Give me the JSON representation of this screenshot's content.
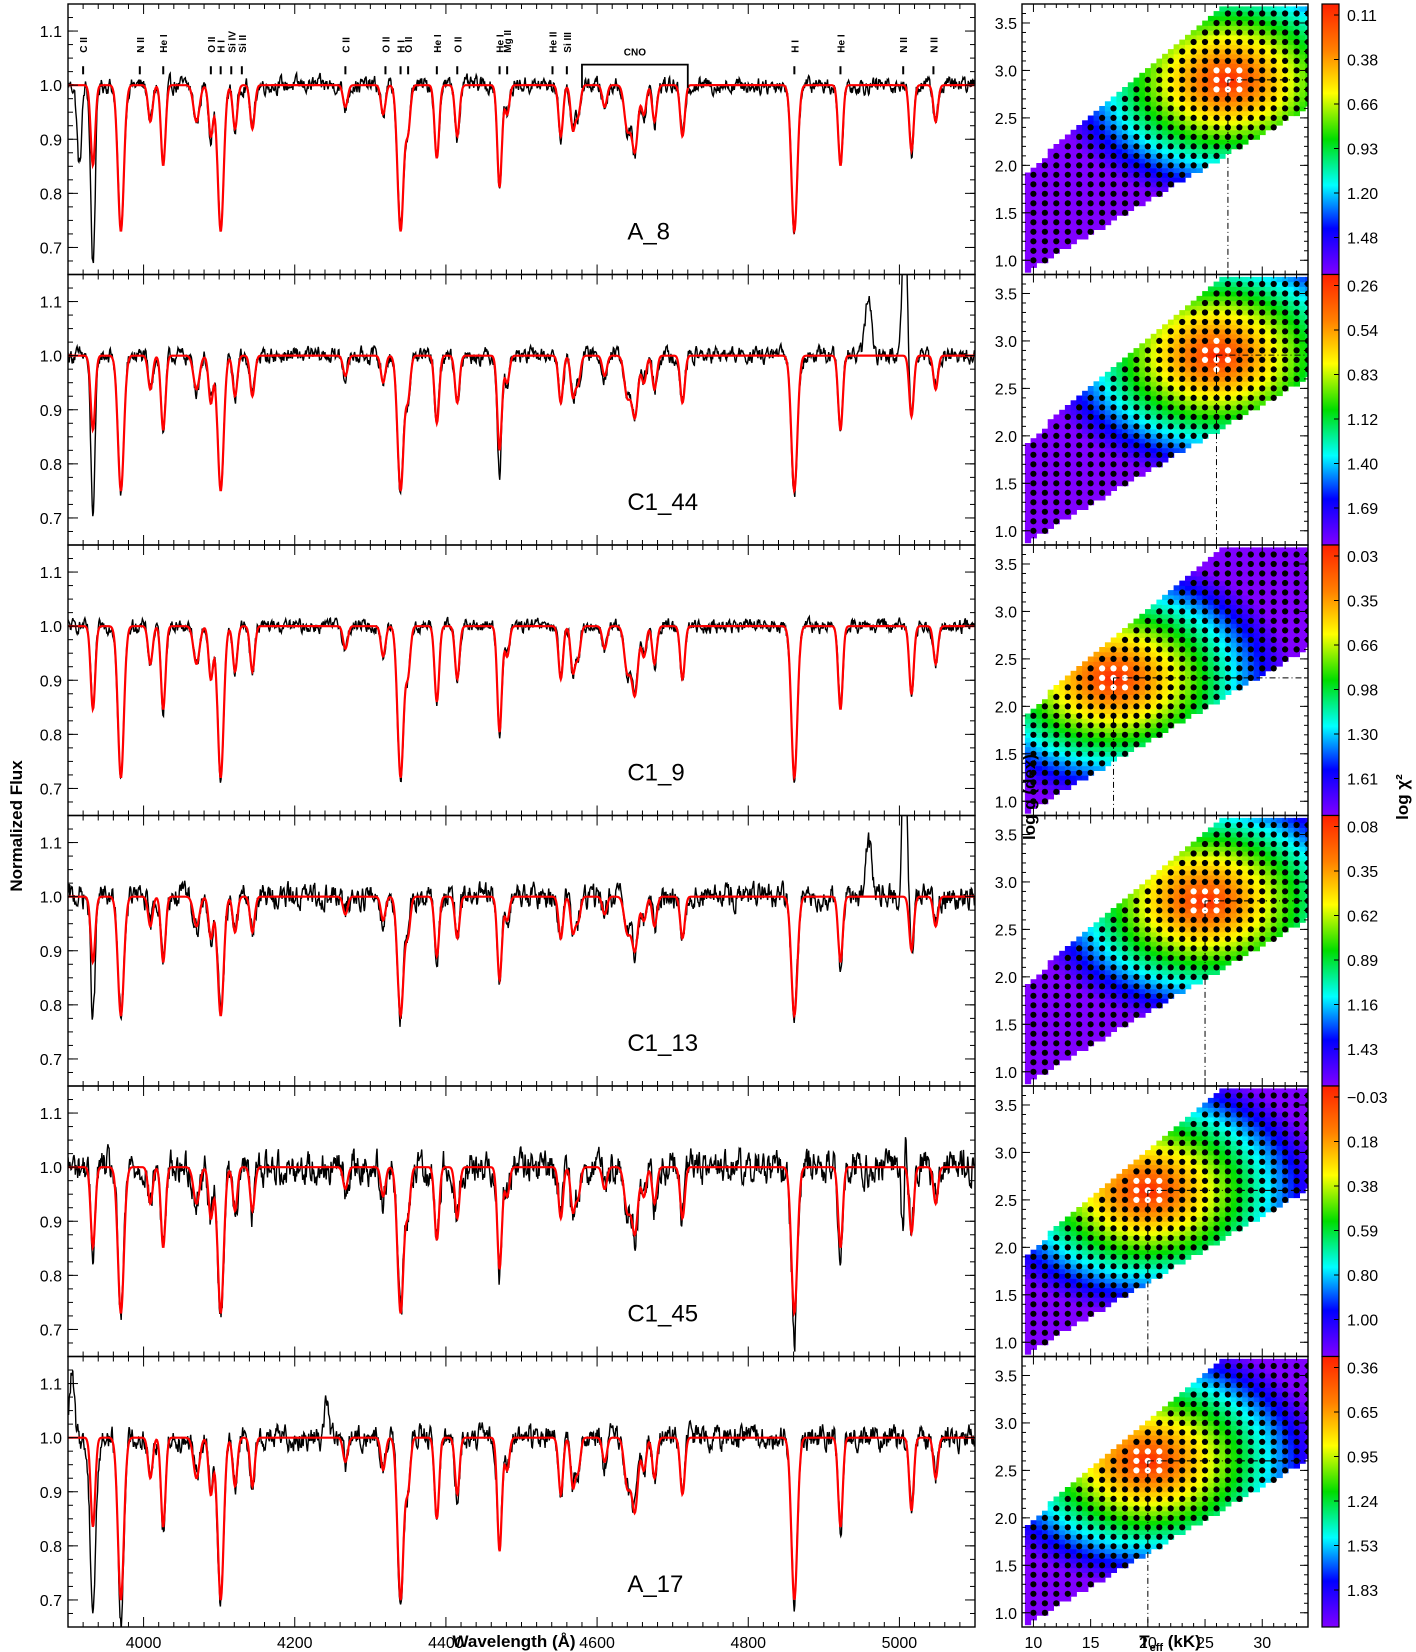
{
  "figure": {
    "left_ylabel": "Normalized Flux",
    "left_xlabel": "Wavelength (Å)",
    "right_ylabel": "log g (dex)",
    "right_xlabel_main": "T",
    "right_xlabel_sub": "eff",
    "right_xlabel_unit": " (kK)",
    "colorbar_label": "log χ²"
  },
  "chart_data": [
    {
      "type": "line",
      "title": "",
      "xlabel": "Wavelength (Å)",
      "ylabel": "Normalized Flux",
      "xlim": [
        3900,
        5100
      ],
      "ylim": [
        0.65,
        1.15
      ],
      "x_ticks": [
        4000,
        4200,
        4400,
        4600,
        4800,
        5000
      ],
      "y_ticks": [
        0.7,
        0.8,
        0.9,
        1.0,
        1.1
      ],
      "y_tick_labels": [
        "0.7",
        "0.8",
        "0.9",
        "1.0",
        "1.1"
      ],
      "line_colors": {
        "observed": "#000000",
        "model": "#ff0000"
      },
      "line_ids": [
        {
          "label": "C II",
          "wavelength": 3920
        },
        {
          "label": "N II",
          "wavelength": 3995
        },
        {
          "label": "He I",
          "wavelength": 4026
        },
        {
          "label": "O II",
          "wavelength": 4089
        },
        {
          "label": "H I",
          "wavelength": 4102
        },
        {
          "label": "Si IV",
          "wavelength": 4116
        },
        {
          "label": "Si II",
          "wavelength": 4130
        },
        {
          "label": "C II",
          "wavelength": 4267
        },
        {
          "label": "O II",
          "wavelength": 4320
        },
        {
          "label": "H I",
          "wavelength": 4340
        },
        {
          "label": "O II",
          "wavelength": 4350
        },
        {
          "label": "He I",
          "wavelength": 4388
        },
        {
          "label": "O II",
          "wavelength": 4415
        },
        {
          "label": "He I",
          "wavelength": 4471
        },
        {
          "label": "Mg II",
          "wavelength": 4481
        },
        {
          "label": "He II",
          "wavelength": 4541
        },
        {
          "label": "Si III",
          "wavelength": 4560
        },
        {
          "label": "CNO",
          "wavelength": 4650,
          "range": [
            4580,
            4720
          ]
        },
        {
          "label": "H I",
          "wavelength": 4861
        },
        {
          "label": "He I",
          "wavelength": 4922
        },
        {
          "label": "N II",
          "wavelength": 5005
        },
        {
          "label": "N II",
          "wavelength": 5045
        }
      ],
      "absorption_lines": [
        {
          "wavelength": 3933,
          "width": 3,
          "weight": 0.55
        },
        {
          "wavelength": 3970,
          "width": 4,
          "weight": 1.0
        },
        {
          "wavelength": 4009,
          "width": 3,
          "weight": 0.25
        },
        {
          "wavelength": 4026,
          "width": 3,
          "weight": 0.55
        },
        {
          "wavelength": 4070,
          "width": 4,
          "weight": 0.25
        },
        {
          "wavelength": 4089,
          "width": 3,
          "weight": 0.35
        },
        {
          "wavelength": 4102,
          "width": 4,
          "weight": 1.0
        },
        {
          "wavelength": 4121,
          "width": 3,
          "weight": 0.3
        },
        {
          "wavelength": 4144,
          "width": 3,
          "weight": 0.3
        },
        {
          "wavelength": 4267,
          "width": 3,
          "weight": 0.15
        },
        {
          "wavelength": 4317,
          "width": 3,
          "weight": 0.2
        },
        {
          "wavelength": 4340,
          "width": 4,
          "weight": 1.0
        },
        {
          "wavelength": 4350,
          "width": 3,
          "weight": 0.3
        },
        {
          "wavelength": 4388,
          "width": 3,
          "weight": 0.5
        },
        {
          "wavelength": 4415,
          "width": 3,
          "weight": 0.35
        },
        {
          "wavelength": 4471,
          "width": 3,
          "weight": 0.7
        },
        {
          "wavelength": 4481,
          "width": 3,
          "weight": 0.2
        },
        {
          "wavelength": 4552,
          "width": 3,
          "weight": 0.35
        },
        {
          "wavelength": 4568,
          "width": 3,
          "weight": 0.3
        },
        {
          "wavelength": 4575,
          "width": 3,
          "weight": 0.2
        },
        {
          "wavelength": 4610,
          "width": 3,
          "weight": 0.15
        },
        {
          "wavelength": 4640,
          "width": 4,
          "weight": 0.3
        },
        {
          "wavelength": 4650,
          "width": 4,
          "weight": 0.45
        },
        {
          "wavelength": 4662,
          "width": 3,
          "weight": 0.2
        },
        {
          "wavelength": 4676,
          "width": 3,
          "weight": 0.25
        },
        {
          "wavelength": 4713,
          "width": 3,
          "weight": 0.35
        },
        {
          "wavelength": 4861,
          "width": 4,
          "weight": 1.0
        },
        {
          "wavelength": 4922,
          "width": 3,
          "weight": 0.55
        },
        {
          "wavelength": 5016,
          "width": 3,
          "weight": 0.45
        },
        {
          "wavelength": 5048,
          "width": 3,
          "weight": 0.25
        }
      ],
      "series": [
        {
          "name": "A_8",
          "depth": 0.27,
          "noise": 0.012,
          "extra": [
            {
              "wavelength": 3915,
              "depth": 0.15,
              "width": 3
            },
            {
              "wavelength": 3933,
              "depth": 0.18,
              "width": 3
            }
          ]
        },
        {
          "name": "C1_44",
          "depth": 0.25,
          "noise": 0.012,
          "extra": [
            {
              "wavelength": 3933,
              "depth": 0.15,
              "width": 3
            },
            {
              "wavelength": 4471,
              "depth": 0.05,
              "width": 2
            }
          ],
          "emission": [
            {
              "wavelength": 4959,
              "height": 0.11,
              "width": 4
            },
            {
              "wavelength": 5007,
              "height": 0.3,
              "width": 3
            }
          ]
        },
        {
          "name": "C1_9",
          "depth": 0.28,
          "noise": 0.01,
          "extra": []
        },
        {
          "name": "C1_13",
          "depth": 0.22,
          "noise": 0.018,
          "extra": [
            {
              "wavelength": 3933,
              "depth": 0.1,
              "width": 3
            }
          ],
          "emission": [
            {
              "wavelength": 4959,
              "height": 0.1,
              "width": 4
            },
            {
              "wavelength": 5007,
              "height": 0.3,
              "width": 3
            }
          ]
        },
        {
          "name": "C1_45",
          "depth": 0.27,
          "noise": 0.025,
          "extra": [
            {
              "wavelength": 4861,
              "depth": 0.05,
              "width": 2
            },
            {
              "wavelength": 5005,
              "depth": 0.18,
              "width": 2
            }
          ],
          "emission": [
            {
              "wavelength": 5007,
              "height": 0.12,
              "width": 2
            }
          ]
        },
        {
          "name": "A_17",
          "depth": 0.3,
          "noise": 0.018,
          "extra": [
            {
              "wavelength": 3933,
              "depth": 0.15,
              "width": 5
            },
            {
              "wavelength": 3970,
              "depth": 0.05,
              "width": 2
            }
          ],
          "emission": [
            {
              "wavelength": 3905,
              "height": 0.12,
              "width": 3
            },
            {
              "wavelength": 4242,
              "height": 0.07,
              "width": 3
            }
          ]
        }
      ]
    },
    {
      "type": "heatmap",
      "title": "",
      "xlabel": "Teff (kK)",
      "ylabel": "log g (dex)",
      "xlim": [
        9,
        34
      ],
      "ylim": [
        0.85,
        3.7
      ],
      "x_ticks": [
        10,
        15,
        20,
        25,
        30
      ],
      "y_ticks": [
        1.0,
        1.5,
        2.0,
        2.5,
        3.0,
        3.5
      ],
      "y_tick_labels": [
        "1.0",
        "1.5",
        "2.0",
        "2.5",
        "3.0",
        "3.5"
      ],
      "colorbar_label": "log χ²",
      "colorscale": [
        "#ff2000",
        "#ff8000",
        "#ffff00",
        "#00dd00",
        "#00ffff",
        "#0000ff",
        "#8000ff"
      ],
      "grid_teff_step": 1,
      "grid_logg_step": 0.1,
      "panels": [
        {
          "star": "A_8",
          "best_teff": 27,
          "best_logg": 2.9,
          "colorbar_ticks": [
            "0.11",
            "0.38",
            "0.66",
            "0.93",
            "1.20",
            "1.48"
          ]
        },
        {
          "star": "C1_44",
          "best_teff": 26,
          "best_logg": 2.85,
          "colorbar_ticks": [
            "0.26",
            "0.54",
            "0.83",
            "1.12",
            "1.40",
            "1.69"
          ]
        },
        {
          "star": "C1_9",
          "best_teff": 17,
          "best_logg": 2.3,
          "colorbar_ticks": [
            "0.03",
            "0.35",
            "0.66",
            "0.98",
            "1.30",
            "1.61"
          ]
        },
        {
          "star": "C1_13",
          "best_teff": 25,
          "best_logg": 2.8,
          "colorbar_ticks": [
            "0.08",
            "0.35",
            "0.62",
            "0.89",
            "1.16",
            "1.43"
          ]
        },
        {
          "star": "C1_45",
          "best_teff": 20,
          "best_logg": 2.6,
          "colorbar_ticks": [
            "−0.03",
            "0.18",
            "0.38",
            "0.59",
            "0.80",
            "1.00"
          ]
        },
        {
          "star": "A_17",
          "best_teff": 20,
          "best_logg": 2.6,
          "colorbar_ticks": [
            "0.36",
            "0.65",
            "0.95",
            "1.24",
            "1.53",
            "1.83"
          ]
        }
      ]
    }
  ]
}
